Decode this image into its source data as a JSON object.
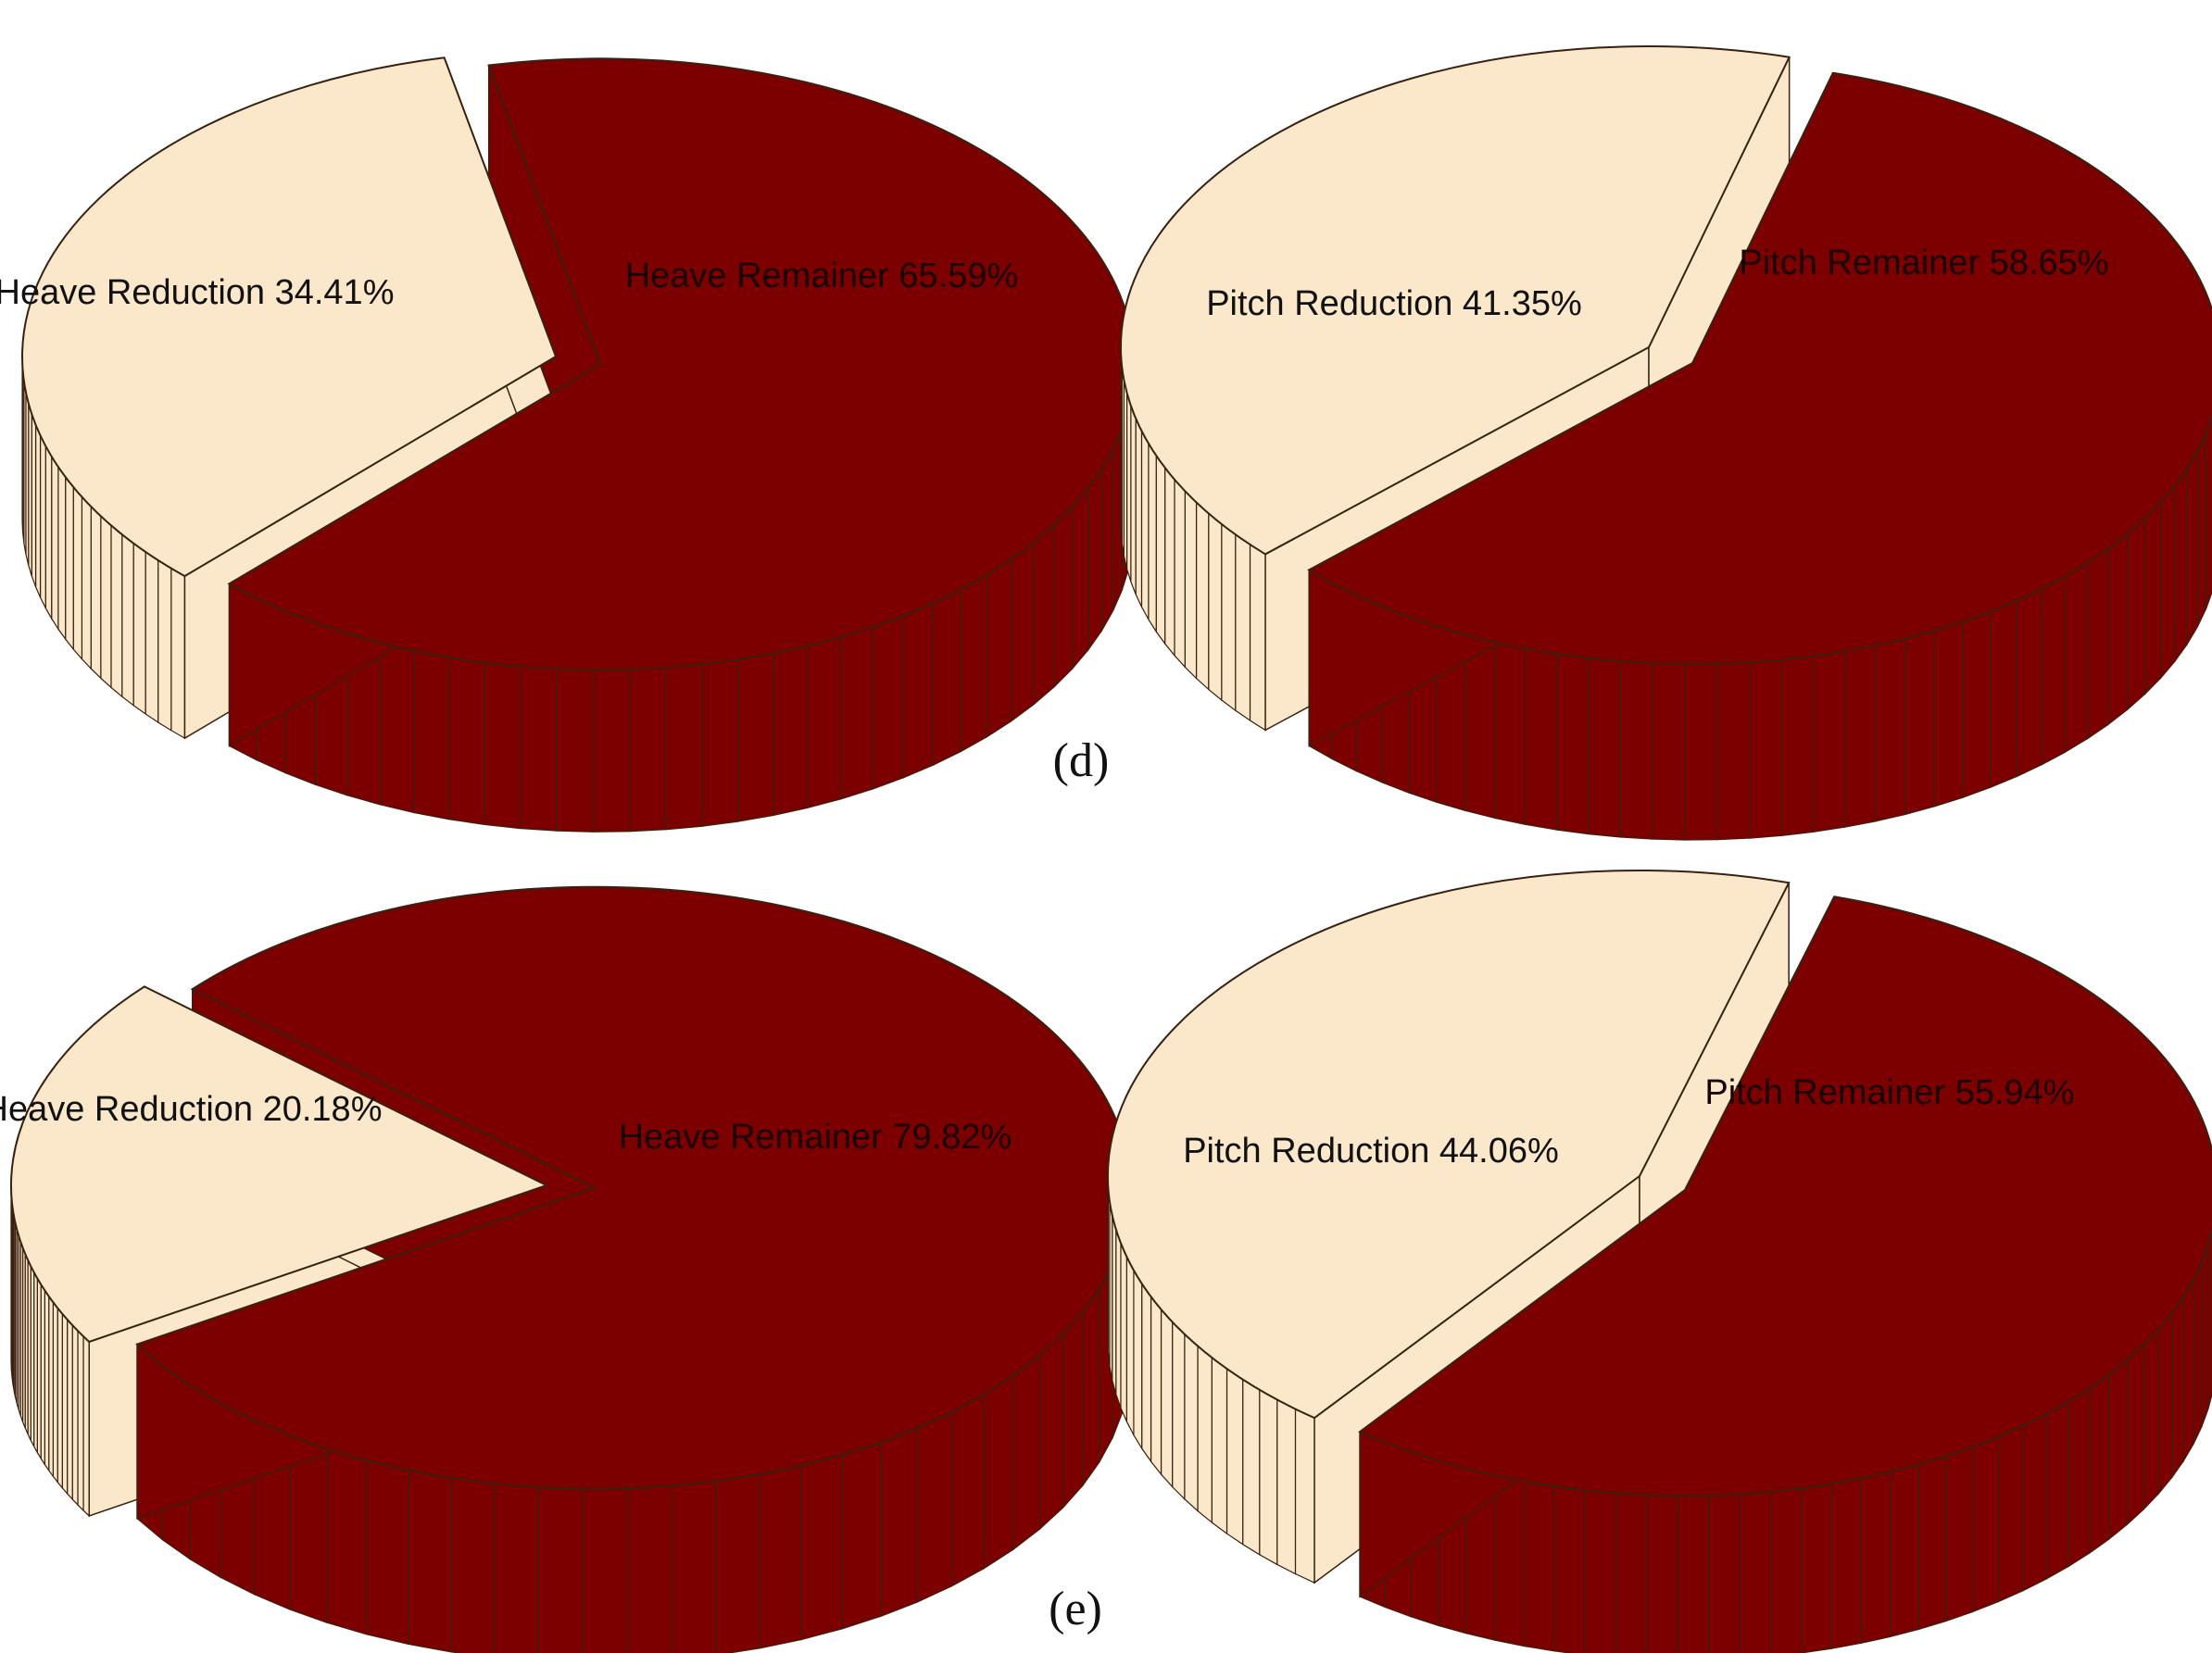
{
  "colors": {
    "reduction": "#FBE7C9",
    "remainder": "#7D0000",
    "edge": "#3a2010",
    "label_on_reduction": "#111111",
    "label_on_remainder": "#1a0000"
  },
  "captions": {
    "d": "(d)",
    "e": "(e)"
  },
  "chart_data": [
    {
      "panel": "(d)",
      "type": "pie",
      "style": "3d-exploded",
      "slices": [
        {
          "name": "Heave Reduction",
          "value": 34.41,
          "label": "34.41%"
        },
        {
          "name": "Heave Remainer",
          "value": 65.59,
          "label": "65.59%"
        }
      ]
    },
    {
      "panel": "(d)",
      "type": "pie",
      "style": "3d-exploded",
      "slices": [
        {
          "name": "Pitch Reduction",
          "value": 41.35,
          "label": "41.35%"
        },
        {
          "name": "Pitch Remainer",
          "value": 58.65,
          "label": "58.65%"
        }
      ]
    },
    {
      "panel": "(e)",
      "type": "pie",
      "style": "3d-exploded",
      "slices": [
        {
          "name": "Heave Reduction",
          "value": 20.18,
          "label": "20.18%"
        },
        {
          "name": "Heave Remainer",
          "value": 79.82,
          "label": "79.82%"
        }
      ]
    },
    {
      "panel": "(e)",
      "type": "pie",
      "style": "3d-exploded",
      "slices": [
        {
          "name": "Pitch Reduction",
          "value": 44.06,
          "label": "44.06%"
        },
        {
          "name": "Pitch Remainer",
          "value": 55.94,
          "label": "55.94%"
        }
      ]
    }
  ]
}
